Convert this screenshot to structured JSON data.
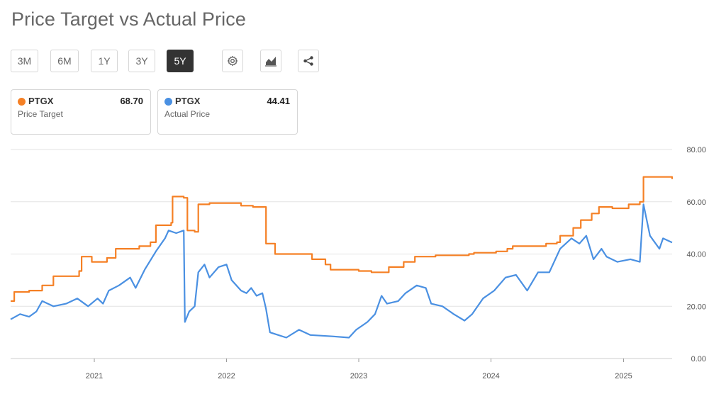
{
  "title": "Price Target vs Actual Price",
  "range_buttons": [
    {
      "label": "3M",
      "active": false
    },
    {
      "label": "6M",
      "active": false
    },
    {
      "label": "1Y",
      "active": false
    },
    {
      "label": "3Y",
      "active": false
    },
    {
      "label": "5Y",
      "active": true
    }
  ],
  "tool_buttons": [
    {
      "name": "settings-button",
      "icon": "gear-icon"
    },
    {
      "name": "chart-type-button",
      "icon": "area-chart-icon"
    },
    {
      "name": "share-button",
      "icon": "share-icon"
    }
  ],
  "cards": [
    {
      "symbol": "PTGX",
      "value": "68.70",
      "label": "Price Target",
      "color": "#f58025"
    },
    {
      "symbol": "PTGX",
      "value": "44.41",
      "label": "Actual Price",
      "color": "#4a90e2"
    }
  ],
  "chart_data": {
    "type": "line",
    "y_ticks": [
      "0.00",
      "20.00",
      "40.00",
      "60.00",
      "80.00"
    ],
    "ylim": [
      0,
      80
    ],
    "x_ticks": [
      "2021",
      "2022",
      "2023",
      "2024",
      "2025"
    ],
    "xlim": [
      "2020-05-15",
      "2025-05-15"
    ],
    "grid": true,
    "series": [
      {
        "name": "Price Target",
        "color": "#f58025",
        "points": [
          [
            "2020-05-15",
            22
          ],
          [
            "2020-05-25",
            25.5
          ],
          [
            "2020-07-05",
            26
          ],
          [
            "2020-08-10",
            28
          ],
          [
            "2020-09-10",
            31.5
          ],
          [
            "2020-11-20",
            33.5
          ],
          [
            "2020-11-27",
            39
          ],
          [
            "2020-12-25",
            37
          ],
          [
            "2021-02-05",
            38.5
          ],
          [
            "2021-03-01",
            42
          ],
          [
            "2021-05-05",
            43
          ],
          [
            "2021-06-05",
            44.5
          ],
          [
            "2021-06-20",
            51
          ],
          [
            "2021-08-01",
            52
          ],
          [
            "2021-08-05",
            62
          ],
          [
            "2021-09-05",
            61.5
          ],
          [
            "2021-09-15",
            49
          ],
          [
            "2021-10-05",
            48.5
          ],
          [
            "2021-10-15",
            59
          ],
          [
            "2021-11-15",
            59.5
          ],
          [
            "2022-01-15",
            59.5
          ],
          [
            "2022-02-10",
            58.5
          ],
          [
            "2022-03-15",
            58
          ],
          [
            "2022-04-10",
            58
          ],
          [
            "2022-04-20",
            44
          ],
          [
            "2022-05-15",
            40
          ],
          [
            "2022-07-15",
            40
          ],
          [
            "2022-08-25",
            38
          ],
          [
            "2022-10-01",
            36
          ],
          [
            "2022-10-15",
            34
          ],
          [
            "2023-01-01",
            33.5
          ],
          [
            "2023-02-05",
            33
          ],
          [
            "2023-03-25",
            35
          ],
          [
            "2023-05-05",
            37
          ],
          [
            "2023-06-05",
            39
          ],
          [
            "2023-08-01",
            39.5
          ],
          [
            "2023-11-01",
            40
          ],
          [
            "2023-11-15",
            40.5
          ],
          [
            "2024-01-15",
            41
          ],
          [
            "2024-02-15",
            42
          ],
          [
            "2024-03-01",
            43
          ],
          [
            "2024-06-01",
            44
          ],
          [
            "2024-07-01",
            44.5
          ],
          [
            "2024-07-10",
            47
          ],
          [
            "2024-08-15",
            50
          ],
          [
            "2024-09-05",
            53
          ],
          [
            "2024-10-05",
            55.5
          ],
          [
            "2024-10-25",
            58
          ],
          [
            "2024-12-01",
            57.5
          ],
          [
            "2025-01-15",
            59
          ],
          [
            "2025-02-15",
            60
          ],
          [
            "2025-02-25",
            69.5
          ],
          [
            "2025-05-15",
            68.7
          ]
        ]
      },
      {
        "name": "Actual Price",
        "color": "#4a90e2",
        "points": [
          [
            "2020-05-15",
            15
          ],
          [
            "2020-06-10",
            17
          ],
          [
            "2020-07-05",
            16
          ],
          [
            "2020-07-25",
            18
          ],
          [
            "2020-08-10",
            22
          ],
          [
            "2020-09-10",
            20
          ],
          [
            "2020-10-15",
            21
          ],
          [
            "2020-11-15",
            23
          ],
          [
            "2020-12-15",
            20
          ],
          [
            "2021-01-10",
            23
          ],
          [
            "2021-01-25",
            21
          ],
          [
            "2021-02-10",
            26
          ],
          [
            "2021-03-10",
            28
          ],
          [
            "2021-04-10",
            31
          ],
          [
            "2021-04-25",
            27
          ],
          [
            "2021-05-20",
            34
          ],
          [
            "2021-06-20",
            41
          ],
          [
            "2021-07-15",
            46
          ],
          [
            "2021-07-25",
            49
          ],
          [
            "2021-08-15",
            48
          ],
          [
            "2021-09-05",
            49
          ],
          [
            "2021-09-08",
            14
          ],
          [
            "2021-09-20",
            18
          ],
          [
            "2021-10-05",
            20
          ],
          [
            "2021-10-15",
            33
          ],
          [
            "2021-11-01",
            36
          ],
          [
            "2021-11-15",
            31
          ],
          [
            "2021-12-10",
            35
          ],
          [
            "2022-01-01",
            36
          ],
          [
            "2022-01-15",
            30
          ],
          [
            "2022-02-10",
            26
          ],
          [
            "2022-02-25",
            25
          ],
          [
            "2022-03-10",
            27
          ],
          [
            "2022-03-25",
            24
          ],
          [
            "2022-04-10",
            25
          ],
          [
            "2022-04-20",
            19
          ],
          [
            "2022-05-01",
            10
          ],
          [
            "2022-06-15",
            8
          ],
          [
            "2022-07-20",
            11
          ],
          [
            "2022-08-20",
            9
          ],
          [
            "2022-10-20",
            8.5
          ],
          [
            "2022-12-05",
            8
          ],
          [
            "2022-12-25",
            11
          ],
          [
            "2023-01-25",
            14
          ],
          [
            "2023-02-15",
            17
          ],
          [
            "2023-03-05",
            24
          ],
          [
            "2023-03-20",
            21
          ],
          [
            "2023-04-20",
            22
          ],
          [
            "2023-05-10",
            25
          ],
          [
            "2023-06-10",
            28
          ],
          [
            "2023-07-05",
            27
          ],
          [
            "2023-07-20",
            21
          ],
          [
            "2023-08-20",
            20
          ],
          [
            "2023-09-20",
            17
          ],
          [
            "2023-10-20",
            14.5
          ],
          [
            "2023-11-10",
            17
          ],
          [
            "2023-12-10",
            23
          ],
          [
            "2024-01-10",
            26
          ],
          [
            "2024-02-10",
            31
          ],
          [
            "2024-03-10",
            32
          ],
          [
            "2024-04-10",
            26
          ],
          [
            "2024-05-10",
            33
          ],
          [
            "2024-06-10",
            33
          ],
          [
            "2024-07-10",
            42
          ],
          [
            "2024-08-10",
            46
          ],
          [
            "2024-09-01",
            44
          ],
          [
            "2024-09-20",
            47
          ],
          [
            "2024-10-10",
            38
          ],
          [
            "2024-11-01",
            42
          ],
          [
            "2024-11-15",
            39
          ],
          [
            "2024-12-15",
            37
          ],
          [
            "2025-01-20",
            38
          ],
          [
            "2025-02-15",
            37
          ],
          [
            "2025-02-25",
            59
          ],
          [
            "2025-03-15",
            47
          ],
          [
            "2025-04-10",
            42
          ],
          [
            "2025-04-20",
            46
          ],
          [
            "2025-05-15",
            44.41
          ]
        ]
      }
    ]
  }
}
